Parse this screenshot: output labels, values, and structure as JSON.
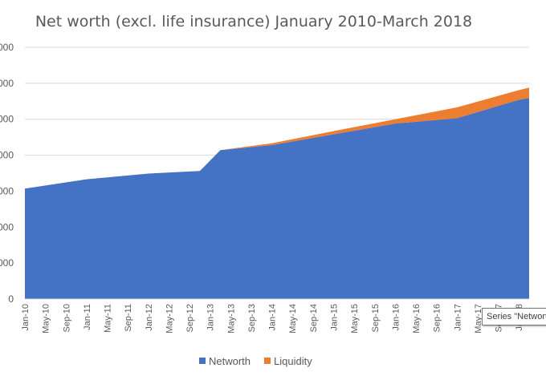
{
  "chart_data": {
    "type": "area",
    "stacked": true,
    "title": "Net worth (excl. life insurance) January 2010-March 2018",
    "xlabel": "",
    "ylabel": "",
    "ylim": [
      0,
      7000
    ],
    "y_ticks": [
      {
        "value": 0,
        "label": "0"
      },
      {
        "value": 1000,
        "label": "000"
      },
      {
        "value": 2000,
        "label": "000"
      },
      {
        "value": 3000,
        "label": "000"
      },
      {
        "value": 4000,
        "label": "000"
      },
      {
        "value": 5000,
        "label": "000"
      },
      {
        "value": 6000,
        "label": "000"
      },
      {
        "value": 7000,
        "label": "000"
      }
    ],
    "grid": true,
    "legend_position": "bottom",
    "x_tick_labels": [
      "Jan-10",
      "May-10",
      "Sep-10",
      "Jan-11",
      "May-11",
      "Sep-11",
      "Jan-12",
      "May-12",
      "Sep-12",
      "Jan-13",
      "May-13",
      "Sep-13",
      "Jan-14",
      "May-14",
      "Sep-14",
      "Jan-15",
      "May-15",
      "Sep-15",
      "Jan-16",
      "May-16",
      "Sep-16",
      "Jan-17",
      "May-17",
      "Sep-17",
      "Jan-18"
    ],
    "x": [
      "Jan-10",
      "Jan-11",
      "Jan-12",
      "Nov-12",
      "Mar-13",
      "Jan-14",
      "Jan-15",
      "Jan-16",
      "Jan-17",
      "Jan-18",
      "Mar-18"
    ],
    "series": [
      {
        "name": "Networth",
        "color": "#4472C4",
        "values": [
          3070,
          3330,
          3490,
          3560,
          4140,
          4280,
          4580,
          4880,
          5030,
          5540,
          5590
        ]
      },
      {
        "name": "Liquidity",
        "color": "#ED7D31",
        "values": [
          0,
          0,
          0,
          0,
          0,
          50,
          90,
          120,
          300,
          270,
          290
        ]
      }
    ]
  },
  "tooltip": {
    "text": "Series \"Networth\""
  },
  "colors": {
    "networth": "#4472C4",
    "liquidity": "#ED7D31",
    "grid": "#d9d9d9",
    "text": "#595959"
  }
}
